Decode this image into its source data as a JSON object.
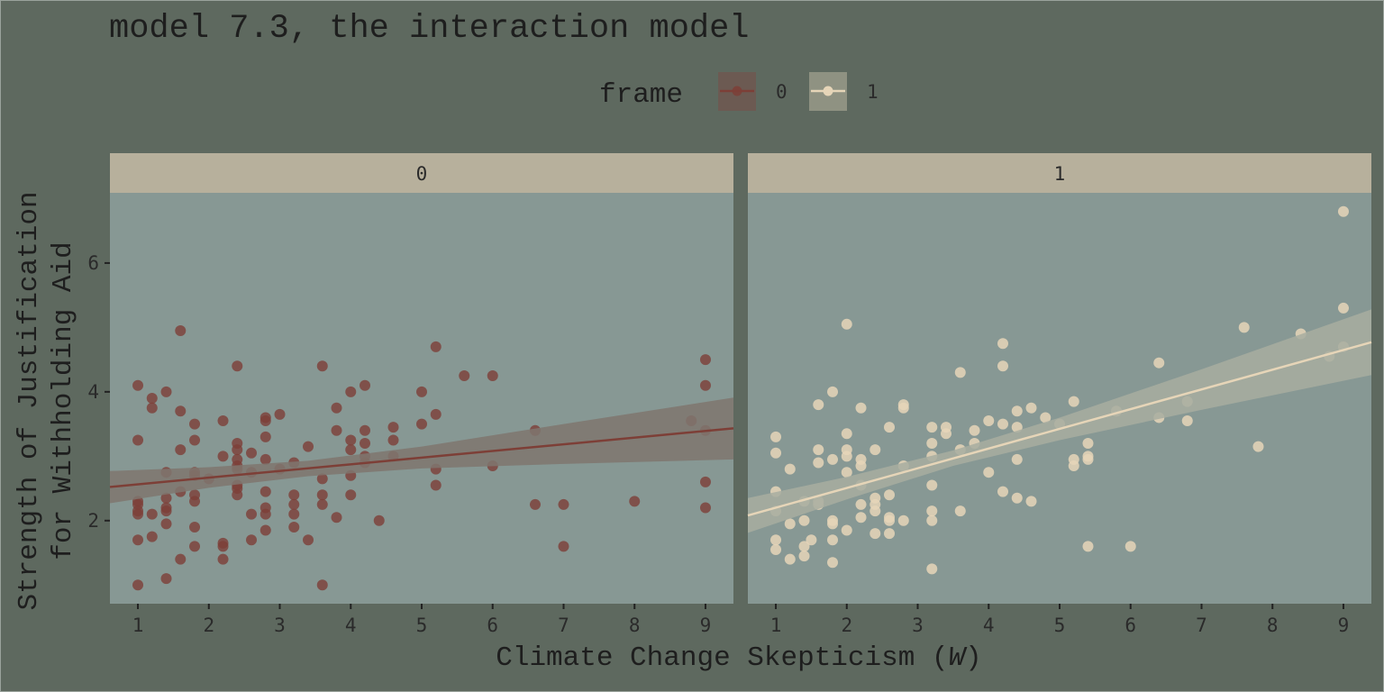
{
  "chart_data": {
    "type": "scatter",
    "title": "model 7.3, the interaction model",
    "xlabel": "Climate Change Skepticism (",
    "xlabel_var": "W",
    "xlabel_close": ")",
    "ylabel": [
      "Strength of Justification",
      "for Withholding Aid"
    ],
    "legend": {
      "title": "frame",
      "position": "top",
      "entries": [
        "0",
        "1"
      ]
    },
    "xlim": [
      0.606,
      9.394
    ],
    "ylim": [
      0.71,
      7.09
    ],
    "xticks": [
      1,
      2,
      3,
      4,
      5,
      6,
      7,
      8,
      9
    ],
    "yticks": [
      2,
      4,
      6
    ],
    "grid": false,
    "colors": {
      "background": "#5e695f",
      "panel": "#879894",
      "strip": "#b7b09c",
      "frame0": "#7d3f37",
      "frame1": "#e6d5b8",
      "ribbon0": "#7f756f",
      "ribbon1": "#a8ada0"
    },
    "panels": [
      {
        "strip_label": "0",
        "fit": {
          "intercept": 2.46,
          "slope": 0.1036
        },
        "ribbon": [
          {
            "x": 0.606,
            "lower": 2.27,
            "upper": 2.77
          },
          {
            "x": 2,
            "lower": 2.51,
            "upper": 2.83
          },
          {
            "x": 3.4,
            "lower": 2.69,
            "upper": 2.93
          },
          {
            "x": 5,
            "lower": 2.81,
            "upper": 3.15
          },
          {
            "x": 7,
            "lower": 2.88,
            "upper": 3.5
          },
          {
            "x": 9.394,
            "lower": 2.95,
            "upper": 3.91
          }
        ],
        "points": [
          [
            1,
            4.1
          ],
          [
            1,
            3.25
          ],
          [
            1,
            2.3
          ],
          [
            1,
            2.25
          ],
          [
            1,
            2.15
          ],
          [
            1,
            2.1
          ],
          [
            1,
            1.7
          ],
          [
            1,
            1.0
          ],
          [
            1.2,
            3.9
          ],
          [
            1.2,
            3.75
          ],
          [
            1.2,
            2.1
          ],
          [
            1.2,
            1.75
          ],
          [
            1.4,
            4.0
          ],
          [
            1.4,
            2.75
          ],
          [
            1.4,
            2.35
          ],
          [
            1.4,
            2.2
          ],
          [
            1.4,
            2.15
          ],
          [
            1.4,
            1.95
          ],
          [
            1.4,
            1.1
          ],
          [
            1.6,
            4.95
          ],
          [
            1.6,
            3.7
          ],
          [
            1.6,
            3.1
          ],
          [
            1.6,
            2.45
          ],
          [
            1.6,
            1.4
          ],
          [
            1.8,
            3.5
          ],
          [
            1.8,
            3.25
          ],
          [
            1.8,
            2.75
          ],
          [
            1.8,
            2.7
          ],
          [
            1.8,
            2.4
          ],
          [
            1.8,
            2.3
          ],
          [
            1.8,
            1.9
          ],
          [
            1.8,
            1.6
          ],
          [
            2,
            2.65
          ],
          [
            2.2,
            3.55
          ],
          [
            2.2,
            3.0
          ],
          [
            2.2,
            1.65
          ],
          [
            2.2,
            1.6
          ],
          [
            2.2,
            1.4
          ],
          [
            2.4,
            4.4
          ],
          [
            2.4,
            3.2
          ],
          [
            2.4,
            3.1
          ],
          [
            2.4,
            2.95
          ],
          [
            2.4,
            2.85
          ],
          [
            2.4,
            2.8
          ],
          [
            2.4,
            2.55
          ],
          [
            2.4,
            2.5
          ],
          [
            2.4,
            2.4
          ],
          [
            2.6,
            3.05
          ],
          [
            2.6,
            2.75
          ],
          [
            2.6,
            2.1
          ],
          [
            2.6,
            1.7
          ],
          [
            2.8,
            3.6
          ],
          [
            2.8,
            3.55
          ],
          [
            2.8,
            3.3
          ],
          [
            2.8,
            2.95
          ],
          [
            2.8,
            2.45
          ],
          [
            2.8,
            2.2
          ],
          [
            2.8,
            2.1
          ],
          [
            2.8,
            1.85
          ],
          [
            3,
            3.65
          ],
          [
            3,
            2.8
          ],
          [
            3.2,
            2.9
          ],
          [
            3.2,
            2.4
          ],
          [
            3.2,
            2.25
          ],
          [
            3.2,
            2.1
          ],
          [
            3.2,
            1.9
          ],
          [
            3.4,
            3.15
          ],
          [
            3.4,
            1.7
          ],
          [
            3.6,
            4.4
          ],
          [
            3.6,
            2.65
          ],
          [
            3.6,
            2.4
          ],
          [
            3.6,
            2.25
          ],
          [
            3.6,
            1.0
          ],
          [
            3.8,
            3.75
          ],
          [
            3.8,
            3.4
          ],
          [
            3.8,
            2.05
          ],
          [
            4,
            4.0
          ],
          [
            4,
            3.25
          ],
          [
            4,
            3.1
          ],
          [
            4,
            2.7
          ],
          [
            4,
            2.4
          ],
          [
            4.2,
            4.1
          ],
          [
            4.2,
            3.4
          ],
          [
            4.2,
            3.2
          ],
          [
            4.2,
            3.0
          ],
          [
            4.2,
            2.9
          ],
          [
            4.4,
            2.0
          ],
          [
            4.6,
            3.45
          ],
          [
            4.6,
            3.25
          ],
          [
            4.6,
            3.0
          ],
          [
            5,
            4.0
          ],
          [
            5,
            3.5
          ],
          [
            5.2,
            4.7
          ],
          [
            5.2,
            3.65
          ],
          [
            5.2,
            2.8
          ],
          [
            5.2,
            2.55
          ],
          [
            5.6,
            4.25
          ],
          [
            6,
            4.25
          ],
          [
            6,
            2.85
          ],
          [
            6.6,
            3.4
          ],
          [
            6.6,
            2.25
          ],
          [
            7,
            2.25
          ],
          [
            7,
            1.6
          ],
          [
            8,
            2.3
          ],
          [
            8.8,
            3.55
          ],
          [
            9,
            4.5
          ],
          [
            9,
            4.1
          ],
          [
            9,
            3.4
          ],
          [
            9,
            2.6
          ],
          [
            9,
            2.2
          ]
        ]
      },
      {
        "strip_label": "1",
        "fit": {
          "intercept": 1.895,
          "slope": 0.306
        },
        "ribbon": [
          {
            "x": 0.606,
            "lower": 1.81,
            "upper": 2.35
          },
          {
            "x": 2,
            "lower": 2.33,
            "upper": 2.68
          },
          {
            "x": 3.5,
            "lower": 2.85,
            "upper": 3.09
          },
          {
            "x": 5,
            "lower": 3.25,
            "upper": 3.6
          },
          {
            "x": 7,
            "lower": 3.72,
            "upper": 4.35
          },
          {
            "x": 9.394,
            "lower": 4.26,
            "upper": 5.28
          }
        ],
        "points": [
          [
            1,
            3.3
          ],
          [
            1,
            3.05
          ],
          [
            1,
            2.45
          ],
          [
            1,
            2.15
          ],
          [
            1,
            1.7
          ],
          [
            1,
            1.55
          ],
          [
            1.2,
            2.8
          ],
          [
            1.2,
            1.95
          ],
          [
            1.2,
            1.4
          ],
          [
            1.4,
            2.3
          ],
          [
            1.4,
            2.0
          ],
          [
            1.4,
            1.6
          ],
          [
            1.4,
            1.45
          ],
          [
            1.5,
            1.7
          ],
          [
            1.6,
            3.8
          ],
          [
            1.6,
            3.1
          ],
          [
            1.6,
            2.9
          ],
          [
            1.6,
            2.3
          ],
          [
            1.6,
            2.25
          ],
          [
            1.8,
            4.0
          ],
          [
            1.8,
            2.95
          ],
          [
            1.8,
            2.0
          ],
          [
            1.8,
            1.95
          ],
          [
            1.8,
            1.7
          ],
          [
            1.8,
            1.35
          ],
          [
            2,
            5.05
          ],
          [
            2,
            3.35
          ],
          [
            2,
            3.1
          ],
          [
            2,
            3.0
          ],
          [
            2,
            2.75
          ],
          [
            2,
            1.85
          ],
          [
            2.2,
            3.75
          ],
          [
            2.2,
            2.95
          ],
          [
            2.2,
            2.85
          ],
          [
            2.2,
            2.55
          ],
          [
            2.2,
            2.25
          ],
          [
            2.2,
            2.05
          ],
          [
            2.4,
            3.1
          ],
          [
            2.4,
            2.35
          ],
          [
            2.4,
            2.25
          ],
          [
            2.4,
            2.15
          ],
          [
            2.4,
            1.8
          ],
          [
            2.6,
            3.45
          ],
          [
            2.6,
            2.4
          ],
          [
            2.6,
            2.05
          ],
          [
            2.6,
            2.0
          ],
          [
            2.6,
            1.8
          ],
          [
            2.8,
            3.8
          ],
          [
            2.8,
            3.75
          ],
          [
            2.8,
            2.85
          ],
          [
            2.8,
            2.0
          ],
          [
            3.2,
            3.45
          ],
          [
            3.2,
            3.2
          ],
          [
            3.2,
            3.0
          ],
          [
            3.2,
            2.55
          ],
          [
            3.2,
            2.15
          ],
          [
            3.2,
            2.0
          ],
          [
            3.2,
            1.25
          ],
          [
            3.4,
            3.45
          ],
          [
            3.4,
            3.35
          ],
          [
            3.6,
            4.3
          ],
          [
            3.6,
            3.1
          ],
          [
            3.6,
            2.15
          ],
          [
            3.8,
            3.4
          ],
          [
            3.8,
            3.2
          ],
          [
            4,
            3.55
          ],
          [
            4,
            2.75
          ],
          [
            4.2,
            4.75
          ],
          [
            4.2,
            4.4
          ],
          [
            4.2,
            3.5
          ],
          [
            4.2,
            2.45
          ],
          [
            4.4,
            3.7
          ],
          [
            4.4,
            3.45
          ],
          [
            4.4,
            2.95
          ],
          [
            4.4,
            2.35
          ],
          [
            4.6,
            3.75
          ],
          [
            4.6,
            2.3
          ],
          [
            4.8,
            3.6
          ],
          [
            5,
            3.5
          ],
          [
            5.2,
            3.85
          ],
          [
            5.2,
            2.95
          ],
          [
            5.2,
            2.85
          ],
          [
            5.4,
            3.2
          ],
          [
            5.4,
            3.0
          ],
          [
            5.4,
            2.95
          ],
          [
            5.4,
            1.6
          ],
          [
            5.8,
            3.7
          ],
          [
            6,
            1.6
          ],
          [
            6.4,
            4.45
          ],
          [
            6.4,
            3.6
          ],
          [
            6.8,
            3.85
          ],
          [
            6.8,
            3.55
          ],
          [
            7.6,
            5.0
          ],
          [
            7.8,
            3.15
          ],
          [
            8.4,
            4.9
          ],
          [
            8.8,
            4.55
          ],
          [
            9,
            6.8
          ],
          [
            9,
            5.3
          ],
          [
            9,
            4.7
          ]
        ]
      }
    ]
  }
}
